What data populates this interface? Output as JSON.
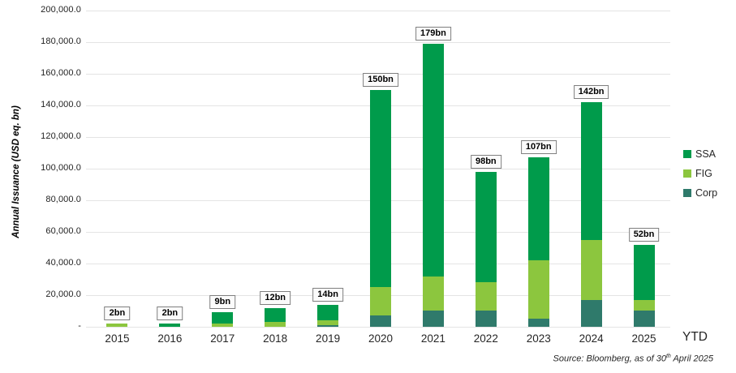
{
  "chart_data": {
    "type": "bar",
    "stacked": true,
    "title": "",
    "ylabel": "Annual Issuance (USD eq. bn)",
    "xlabel": "",
    "x_suffix": "YTD",
    "categories": [
      "2015",
      "2016",
      "2017",
      "2018",
      "2019",
      "2020",
      "2021",
      "2022",
      "2023",
      "2024",
      "2025"
    ],
    "series": [
      {
        "name": "Corp",
        "color": "#2F7A6B",
        "values": [
          0,
          0,
          0,
          0,
          1,
          7,
          10,
          10,
          5,
          17,
          10
        ]
      },
      {
        "name": "FIG",
        "color": "#8CC63E",
        "values": [
          2,
          0,
          2,
          3,
          3,
          18,
          22,
          18,
          37,
          38,
          7
        ]
      },
      {
        "name": "SSA",
        "color": "#009B4B",
        "values": [
          0,
          2,
          7,
          9,
          10,
          125,
          147,
          70,
          65,
          87,
          35
        ]
      }
    ],
    "totals_bn": [
      2,
      2,
      9,
      12,
      14,
      150,
      179,
      98,
      107,
      142,
      52
    ],
    "bar_labels": [
      "2bn",
      "2bn",
      "9bn",
      "12bn",
      "14bn",
      "150bn",
      "179bn",
      "98bn",
      "107bn",
      "142bn",
      "52bn"
    ],
    "ylim": [
      0,
      200000
    ],
    "axis_unit_per_bn": 1000,
    "grid": "horizontal",
    "y_ticks": [
      {
        "label": "200,000.0",
        "value": 200000
      },
      {
        "label": "180,000.0",
        "value": 180000
      },
      {
        "label": "160,000.0",
        "value": 160000
      },
      {
        "label": "140,000.0",
        "value": 140000
      },
      {
        "label": "120,000.0",
        "value": 120000
      },
      {
        "label": "100,000.0",
        "value": 100000
      },
      {
        "label": "80,000.0",
        "value": 80000
      },
      {
        "label": "60,000.0",
        "value": 60000
      },
      {
        "label": "40,000.0",
        "value": 40000
      },
      {
        "label": "20,000.0",
        "value": 20000
      },
      {
        "label": "-",
        "value": 0
      }
    ],
    "legend_position": "right",
    "legend": [
      {
        "label": "SSA",
        "color": "#009B4B"
      },
      {
        "label": "FIG",
        "color": "#8CC63E"
      },
      {
        "label": "Corp",
        "color": "#2F7A6B"
      }
    ],
    "source": {
      "prefix": "Source: Bloomberg, as of 30",
      "sup": "th",
      "suffix": " April 2025"
    }
  }
}
